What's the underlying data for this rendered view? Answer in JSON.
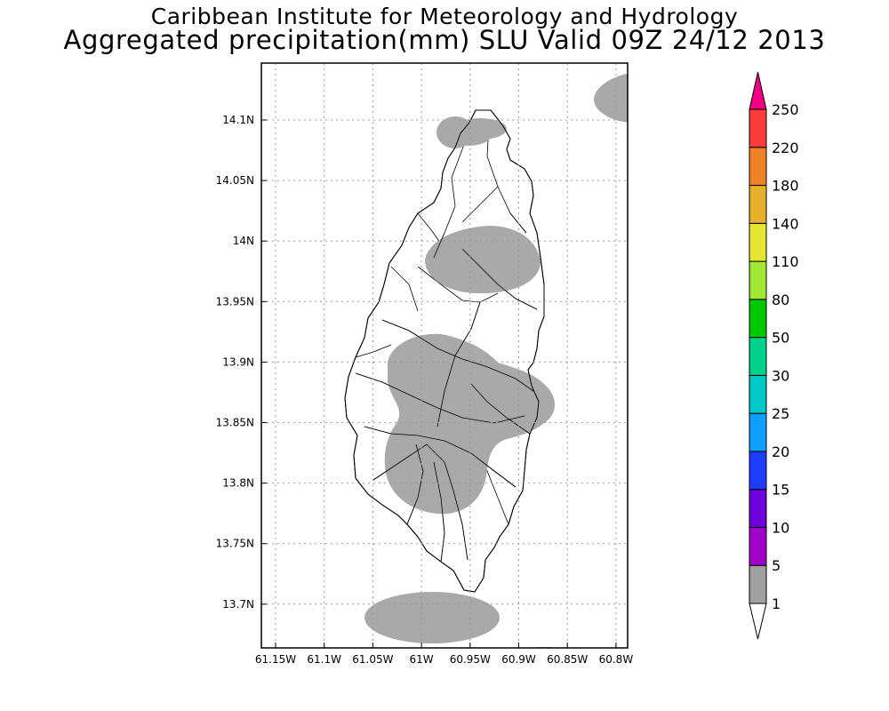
{
  "header": {
    "title_line1": "Caribbean Institute for Meteorology and Hydrology",
    "title_line2": "Aggregated precipitation(mm) SLU Valid 09Z 24/12 2013"
  },
  "map": {
    "lon_ticks": [
      "61.15W",
      "61.1W",
      "61.05W",
      "61W",
      "60.95W",
      "60.9W",
      "60.85W",
      "60.8W"
    ],
    "lat_ticks": [
      "14.1N",
      "14.05N",
      "14N",
      "13.95N",
      "13.9N",
      "13.85N",
      "13.8N",
      "13.75N",
      "13.7N"
    ],
    "precip_fill_color": "#a9a9a9",
    "grid": "dotted"
  },
  "colorbar": {
    "labels": [
      "1",
      "5",
      "10",
      "15",
      "20",
      "25",
      "30",
      "50",
      "80",
      "110",
      "140",
      "180",
      "220",
      "250"
    ],
    "colors": [
      "#ffffff",
      "#a0a0a0",
      "#a000c8",
      "#6e00dc",
      "#1e3cff",
      "#0fa0ff",
      "#00c8c8",
      "#00d28c",
      "#00c800",
      "#a0e632",
      "#e6e632",
      "#e6af2d",
      "#f08228",
      "#fa3c3c",
      "#f00082"
    ]
  }
}
